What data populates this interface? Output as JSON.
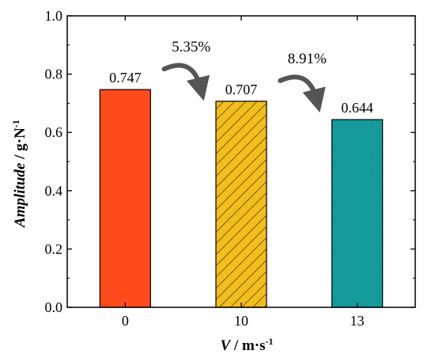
{
  "chart_data": {
    "type": "bar",
    "categories": [
      "0",
      "10",
      "13"
    ],
    "values": [
      0.747,
      0.707,
      0.644
    ],
    "value_labels": [
      "0.747",
      "0.707",
      "0.644"
    ],
    "bar_colors": [
      "#ff4a1c",
      "#f2be1c",
      "#16a3a3"
    ],
    "bar_patterns": [
      "solid",
      "diagonal-hatch",
      "fine-dots"
    ],
    "ylim": [
      0.0,
      1.0
    ],
    "yticks": [
      "0.0",
      "0.2",
      "0.4",
      "0.6",
      "0.8",
      "1.0"
    ],
    "ytick_values": [
      0.0,
      0.2,
      0.4,
      0.6,
      0.8,
      1.0
    ],
    "ylabel": {
      "italic": "Amplitude",
      "rest": " / g·N",
      "sup": "-1"
    },
    "xlabel": {
      "italic": "V",
      "rest": " / m·s",
      "sup": "-1"
    },
    "annotations": [
      {
        "text": "5.35%",
        "from": 0,
        "to": 1
      },
      {
        "text": "8.91%",
        "from": 1,
        "to": 2
      }
    ],
    "grid": false,
    "legend": "none"
  }
}
